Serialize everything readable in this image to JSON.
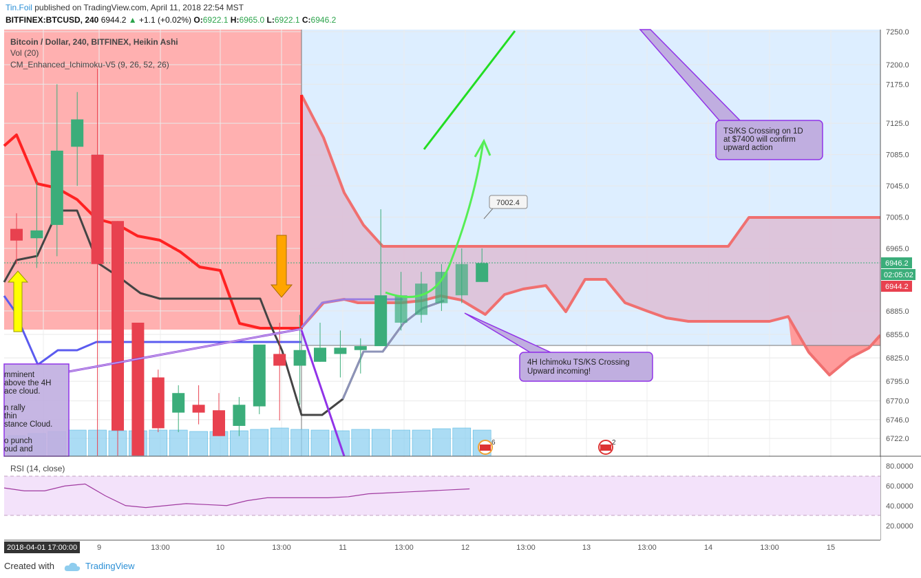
{
  "header": {
    "author": "Tin.Foil",
    "published": "published on TradingView.com, April 11, 2018 22:54 MST",
    "symbol_line": "BITFINEX:BTCUSD, 240",
    "last": "6944.2",
    "change": "+1.1 (+0.02%)",
    "o_label": "O:",
    "o": "6922.1",
    "h_label": "H:",
    "h": "6965.0",
    "l_label": "L:",
    "l": "6922.1",
    "c_label": "C:",
    "c": "6946.2"
  },
  "legend": {
    "series_title": "Bitcoin / Dollar, 240, BITFINEX, Heikin Ashi",
    "vol": "Vol (20)",
    "indicator": "CM_Enhanced_Ichimoku-V5 (9, 26, 52, 26)",
    "rsi": "RSI (14, close)"
  },
  "footer": {
    "created": "Created with",
    "brand": "TradingView"
  },
  "colors": {
    "up": "#3bad7a",
    "down": "#e8414f",
    "tenkan": "#444444",
    "kijun_bear": "#ff2222",
    "kijun_bull": "#5b5bef",
    "cloud_bear": "#f07070",
    "cloud_fill": "#ddbdd5",
    "cloud_bg": "#ffb0b0",
    "forecast_bg": "#ddeeff",
    "arrow_green": "#22dd22",
    "annotation_bg": "#c0aee0",
    "annotation_border": "#9133e8",
    "rsi_line": "#a03aa0",
    "rsi_band": "#f3e2fa",
    "volume": "#8fd0f0",
    "price_tag_last": "#3bad7a",
    "price_tag_close": "#e8414f"
  },
  "chart_data": {
    "type": "candlestick",
    "style": "Heikin Ashi",
    "price_axis": {
      "ticks": [
        "7250.0",
        "7200.0",
        "7175.0",
        "7125.0",
        "7085.0",
        "7045.0",
        "7005.0",
        "6965.0",
        "6885.0",
        "6855.0",
        "6825.0",
        "6795.0",
        "6770.0",
        "6746.0",
        "6722.0"
      ]
    },
    "time_axis": {
      "ticks": [
        "2018-04-01 17:00:00",
        "9",
        "13:00",
        "10",
        "13:00",
        "11",
        "13:00",
        "12",
        "13:00",
        "13",
        "13:00",
        "14",
        "13:00",
        "15"
      ]
    },
    "candles": [
      {
        "open": 6990,
        "high": 7010,
        "low": 6945,
        "close": 6975
      },
      {
        "open": 6978,
        "high": 7050,
        "low": 6940,
        "close": 6988
      },
      {
        "open": 6995,
        "high": 7175,
        "low": 6955,
        "close": 7090
      },
      {
        "open": 7095,
        "high": 7165,
        "low": 7045,
        "close": 7130
      },
      {
        "open": 7085,
        "high": 7195,
        "low": 6700,
        "close": 6945
      },
      {
        "open": 7000,
        "high": 7000,
        "low": 6700,
        "close": 6732
      },
      {
        "open": 6870,
        "high": 6870,
        "low": 6700,
        "close": 6700
      },
      {
        "open": 6800,
        "high": 6810,
        "low": 6730,
        "close": 6735
      },
      {
        "open": 6755,
        "high": 6790,
        "low": 6730,
        "close": 6780
      },
      {
        "open": 6765,
        "high": 6790,
        "low": 6740,
        "close": 6755
      },
      {
        "open": 6758,
        "high": 6780,
        "low": 6725,
        "close": 6725
      },
      {
        "open": 6738,
        "high": 6775,
        "low": 6725,
        "close": 6765
      },
      {
        "open": 6763,
        "high": 6840,
        "low": 6753,
        "close": 6842
      },
      {
        "open": 6830,
        "high": 6870,
        "low": 6745,
        "close": 6815
      },
      {
        "open": 6815,
        "high": 6880,
        "low": 6765,
        "close": 6835
      },
      {
        "open": 6820,
        "high": 6870,
        "low": 6820,
        "close": 6838
      },
      {
        "open": 6830,
        "high": 6860,
        "low": 6800,
        "close": 6838
      },
      {
        "open": 6835,
        "high": 6850,
        "low": 6805,
        "close": 6840
      },
      {
        "open": 6840,
        "high": 7015,
        "low": 6840,
        "close": 6905
      },
      {
        "open": 6870,
        "high": 6935,
        "low": 6860,
        "close": 6905
      },
      {
        "open": 6880,
        "high": 6935,
        "low": 6870,
        "close": 6920
      },
      {
        "open": 6895,
        "high": 6945,
        "low": 6885,
        "close": 6935
      },
      {
        "open": 6905,
        "high": 6965,
        "low": 6895,
        "close": 6945
      },
      {
        "open": 6922.1,
        "high": 6965,
        "low": 6922.1,
        "close": 6946.2
      }
    ],
    "last_price": "6946.2",
    "close_price": "6944.2",
    "countdown": "02:05:02",
    "crosshair_price": "7002.4",
    "rsi": {
      "ticks": [
        "80.0000",
        "60.0000",
        "40.0000",
        "20.0000"
      ],
      "upper": 70,
      "lower": 30,
      "values": [
        58,
        55,
        55,
        60,
        62,
        50,
        40,
        38,
        40,
        42,
        41,
        40,
        45,
        48,
        48,
        48,
        48,
        49,
        52,
        53,
        54,
        55,
        56,
        57
      ]
    }
  },
  "annotations": [
    {
      "id": "tsks-1d",
      "lines": [
        "TS/KS Crossing on 1D",
        "at $7400 will confirm",
        "upward action"
      ]
    },
    {
      "id": "tsks-4h",
      "lines": [
        "4H Ichimoku TS/KS Crossing",
        "Upward incoming!"
      ]
    },
    {
      "id": "left-note",
      "lines": [
        "mminent",
        "above the 4H",
        "ace cloud.",
        "",
        "n rally",
        "thin",
        "stance Cloud.",
        "",
        "o punch",
        "oud and"
      ]
    }
  ],
  "events": [
    {
      "badge": "6"
    },
    {
      "badge": "2"
    }
  ]
}
